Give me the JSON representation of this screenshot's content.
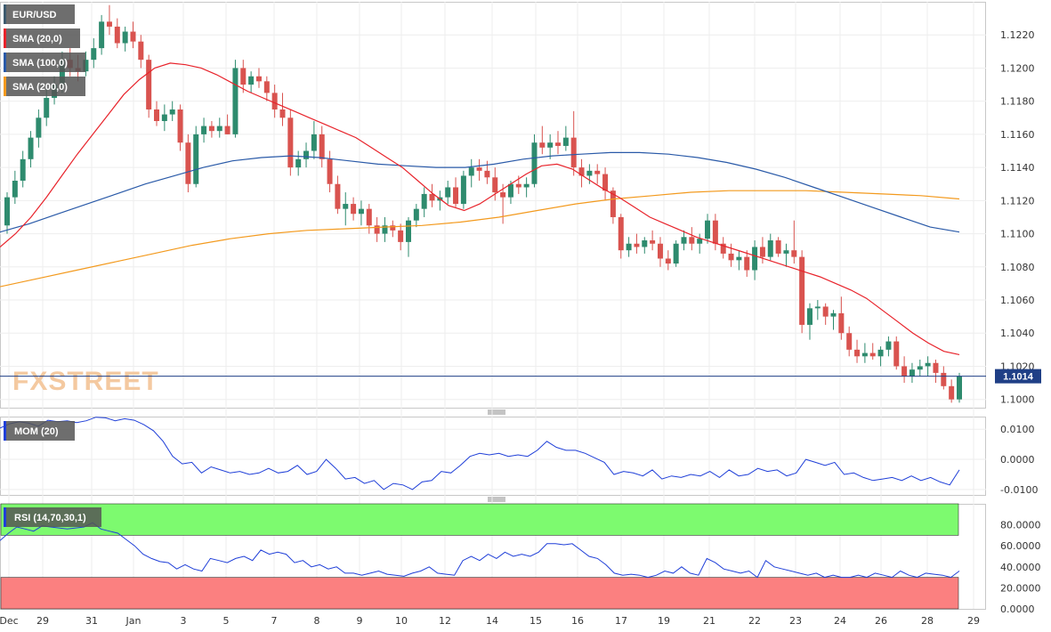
{
  "chart_data": [
    {
      "panel": "price",
      "type": "candlestick",
      "symbol": "EUR/USD",
      "watermark": "FXSTREET",
      "ylim": [
        1.0995,
        1.124
      ],
      "yticks": [
        "1.1000",
        "1.1020",
        "1.1040",
        "1.1060",
        "1.1080",
        "1.1100",
        "1.1120",
        "1.1140",
        "1.1160",
        "1.1180",
        "1.1200",
        "1.1220"
      ],
      "xtick_labels": [
        "Dec",
        "29",
        "31",
        "Jan",
        "3",
        "5",
        "7",
        "8",
        "9",
        "10",
        "12",
        "14",
        "15",
        "16",
        "17",
        "19",
        "21",
        "22",
        "23",
        "24",
        "26",
        "28",
        "29"
      ],
      "last_price": "1.1014",
      "legend": [
        "EUR/USD",
        "SMA (20,0)",
        "SMA (100,0)",
        "SMA (200,0)"
      ],
      "colors": {
        "up": "#2e8b6e",
        "down": "#d9534f",
        "sma20": "#e8232b",
        "sma100": "#2a5aa8",
        "sma200": "#f39a1e",
        "price_line": "#1f3f86"
      },
      "candles": [
        [
          1.1105,
          1.1125,
          1.11,
          1.1122
        ],
        [
          1.1122,
          1.1138,
          1.1118,
          1.1132
        ],
        [
          1.1132,
          1.115,
          1.1128,
          1.1145
        ],
        [
          1.1145,
          1.1162,
          1.114,
          1.1158
        ],
        [
          1.1158,
          1.1175,
          1.1152,
          1.117
        ],
        [
          1.117,
          1.1188,
          1.1165,
          1.1182
        ],
        [
          1.1182,
          1.1195,
          1.1178,
          1.119
        ],
        [
          1.119,
          1.121,
          1.1185,
          1.1205
        ],
        [
          1.1205,
          1.1212,
          1.1195,
          1.12
        ],
        [
          1.12,
          1.1208,
          1.1192,
          1.1198
        ],
        [
          1.1198,
          1.121,
          1.1195,
          1.1205
        ],
        [
          1.1205,
          1.1218,
          1.12,
          1.1212
        ],
        [
          1.1212,
          1.1232,
          1.1208,
          1.1228
        ],
        [
          1.1228,
          1.1238,
          1.122,
          1.1225
        ],
        [
          1.1225,
          1.123,
          1.1212,
          1.1215
        ],
        [
          1.1215,
          1.1225,
          1.121,
          1.1222
        ],
        [
          1.1222,
          1.1228,
          1.1212,
          1.1216
        ],
        [
          1.1216,
          1.122,
          1.12,
          1.1205
        ],
        [
          1.1205,
          1.1208,
          1.117,
          1.1175
        ],
        [
          1.1175,
          1.118,
          1.1165,
          1.1168
        ],
        [
          1.1168,
          1.1178,
          1.1162,
          1.1172
        ],
        [
          1.1172,
          1.118,
          1.1168,
          1.1175
        ],
        [
          1.1175,
          1.1178,
          1.115,
          1.1155
        ],
        [
          1.1155,
          1.116,
          1.1125,
          1.113
        ],
        [
          1.113,
          1.1165,
          1.1128,
          1.116
        ],
        [
          1.116,
          1.117,
          1.1155,
          1.1165
        ],
        [
          1.1165,
          1.1168,
          1.1158,
          1.1162
        ],
        [
          1.1162,
          1.117,
          1.1158,
          1.1165
        ],
        [
          1.1165,
          1.1172,
          1.116,
          1.116
        ],
        [
          1.116,
          1.1205,
          1.1158,
          1.12
        ],
        [
          1.12,
          1.1205,
          1.1185,
          1.119
        ],
        [
          1.119,
          1.1198,
          1.1185,
          1.1195
        ],
        [
          1.1195,
          1.12,
          1.1188,
          1.1192
        ],
        [
          1.1192,
          1.1195,
          1.118,
          1.1185
        ],
        [
          1.1185,
          1.119,
          1.117,
          1.1175
        ],
        [
          1.1175,
          1.1185,
          1.1165,
          1.117
        ],
        [
          1.117,
          1.1175,
          1.1135,
          1.114
        ],
        [
          1.114,
          1.115,
          1.1135,
          1.1145
        ],
        [
          1.1145,
          1.1155,
          1.114,
          1.115
        ],
        [
          1.115,
          1.1168,
          1.1145,
          1.116
        ],
        [
          1.116,
          1.1165,
          1.114,
          1.1145
        ],
        [
          1.1145,
          1.115,
          1.1125,
          1.113
        ],
        [
          1.113,
          1.1135,
          1.1112,
          1.1115
        ],
        [
          1.1115,
          1.1125,
          1.1105,
          1.1118
        ],
        [
          1.1118,
          1.1122,
          1.1108,
          1.1112
        ],
        [
          1.1112,
          1.112,
          1.1105,
          1.1115
        ],
        [
          1.1115,
          1.1118,
          1.11,
          1.1105
        ],
        [
          1.1105,
          1.111,
          1.1095,
          1.11
        ],
        [
          1.11,
          1.111,
          1.1095,
          1.1105
        ],
        [
          1.1105,
          1.1108,
          1.1098,
          1.1102
        ],
        [
          1.1102,
          1.1106,
          1.109,
          1.1095
        ],
        [
          1.1095,
          1.111,
          1.1086,
          1.1108
        ],
        [
          1.1108,
          1.1118,
          1.1104,
          1.1115
        ],
        [
          1.1115,
          1.1128,
          1.111,
          1.1124
        ],
        [
          1.1124,
          1.113,
          1.1116,
          1.112
        ],
        [
          1.112,
          1.1126,
          1.1114,
          1.1122
        ],
        [
          1.1122,
          1.1132,
          1.1118,
          1.1128
        ],
        [
          1.1128,
          1.1134,
          1.1116,
          1.1118
        ],
        [
          1.1118,
          1.1138,
          1.1115,
          1.1135
        ],
        [
          1.1135,
          1.1145,
          1.1128,
          1.114
        ],
        [
          1.114,
          1.1145,
          1.1132,
          1.1138
        ],
        [
          1.1138,
          1.1144,
          1.113,
          1.1134
        ],
        [
          1.1134,
          1.114,
          1.112,
          1.1125
        ],
        [
          1.1125,
          1.113,
          1.1106,
          1.1122
        ],
        [
          1.1122,
          1.1132,
          1.1118,
          1.113
        ],
        [
          1.113,
          1.1135,
          1.1124,
          1.1128
        ],
        [
          1.1128,
          1.1134,
          1.1122,
          1.113
        ],
        [
          1.113,
          1.116,
          1.1128,
          1.1155
        ],
        [
          1.1155,
          1.1165,
          1.1148,
          1.1152
        ],
        [
          1.1152,
          1.116,
          1.1145,
          1.1155
        ],
        [
          1.1155,
          1.1162,
          1.1148,
          1.1153
        ],
        [
          1.1153,
          1.1165,
          1.115,
          1.1158
        ],
        [
          1.1158,
          1.1174,
          1.1135,
          1.114
        ],
        [
          1.114,
          1.1145,
          1.1128,
          1.1135
        ],
        [
          1.1135,
          1.1142,
          1.113,
          1.1138
        ],
        [
          1.1138,
          1.1142,
          1.113,
          1.1136
        ],
        [
          1.1136,
          1.114,
          1.112,
          1.1126
        ],
        [
          1.1126,
          1.1128,
          1.1106,
          1.111
        ],
        [
          1.111,
          1.1112,
          1.1085,
          1.109
        ],
        [
          1.109,
          1.1098,
          1.1086,
          1.1094
        ],
        [
          1.1094,
          1.11,
          1.1088,
          1.1092
        ],
        [
          1.1092,
          1.1098,
          1.1088,
          1.1096
        ],
        [
          1.1096,
          1.1102,
          1.109,
          1.1094
        ],
        [
          1.1094,
          1.1098,
          1.108,
          1.1085
        ],
        [
          1.1085,
          1.109,
          1.1078,
          1.1082
        ],
        [
          1.1082,
          1.1096,
          1.108,
          1.1094
        ],
        [
          1.1094,
          1.1102,
          1.109,
          1.1098
        ],
        [
          1.1098,
          1.1104,
          1.109,
          1.1094
        ],
        [
          1.1094,
          1.11,
          1.1088,
          1.1097
        ],
        [
          1.1097,
          1.1112,
          1.1094,
          1.1108
        ],
        [
          1.1108,
          1.1112,
          1.109,
          1.1094
        ],
        [
          1.1094,
          1.1098,
          1.1085,
          1.1088
        ],
        [
          1.1088,
          1.1094,
          1.108,
          1.1084
        ],
        [
          1.1084,
          1.109,
          1.1078,
          1.1086
        ],
        [
          1.1086,
          1.109,
          1.1074,
          1.1078
        ],
        [
          1.1078,
          1.1096,
          1.1072,
          1.1092
        ],
        [
          1.1092,
          1.1098,
          1.1082,
          1.1086
        ],
        [
          1.1086,
          1.11,
          1.1084,
          1.1096
        ],
        [
          1.1096,
          1.1098,
          1.1086,
          1.1088
        ],
        [
          1.1088,
          1.1094,
          1.108,
          1.109
        ],
        [
          1.109,
          1.1108,
          1.1082,
          1.1086
        ],
        [
          1.1086,
          1.109,
          1.104,
          1.1045
        ],
        [
          1.1045,
          1.1058,
          1.1036,
          1.1055
        ],
        [
          1.1055,
          1.106,
          1.1048,
          1.1056
        ],
        [
          1.1056,
          1.1058,
          1.1045,
          1.105
        ],
        [
          1.105,
          1.1054,
          1.1042,
          1.1052
        ],
        [
          1.1052,
          1.1062,
          1.1036,
          1.104
        ],
        [
          1.104,
          1.1044,
          1.1026,
          1.103
        ],
        [
          1.103,
          1.1036,
          1.1022,
          1.1026
        ],
        [
          1.1026,
          1.1034,
          1.1022,
          1.1028
        ],
        [
          1.1028,
          1.1034,
          1.1024,
          1.1026
        ],
        [
          1.1026,
          1.1032,
          1.102,
          1.103
        ],
        [
          1.103,
          1.1038,
          1.1026,
          1.1035
        ],
        [
          1.1035,
          1.1038,
          1.1018,
          1.102
        ],
        [
          1.102,
          1.1026,
          1.101,
          1.1014
        ],
        [
          1.1014,
          1.1022,
          1.101,
          1.1018
        ],
        [
          1.1018,
          1.1024,
          1.1014,
          1.102
        ],
        [
          1.102,
          1.1026,
          1.1014,
          1.1022
        ],
        [
          1.1022,
          1.1024,
          1.101,
          1.1016
        ],
        [
          1.1016,
          1.102,
          1.1006,
          1.1008
        ],
        [
          1.1008,
          1.1012,
          1.0998,
          1.1
        ],
        [
          1.1,
          1.1016,
          1.0998,
          1.1014
        ]
      ],
      "sma20": [
        1.1092,
        1.11,
        1.111,
        1.1122,
        1.1135,
        1.1148,
        1.116,
        1.1172,
        1.1184,
        1.1193,
        1.12,
        1.1203,
        1.1202,
        1.12,
        1.1196,
        1.1191,
        1.1186,
        1.1182,
        1.1178,
        1.1174,
        1.117,
        1.1166,
        1.1162,
        1.1158,
        1.1152,
        1.1146,
        1.114,
        1.1132,
        1.1124,
        1.1117,
        1.1114,
        1.1118,
        1.1124,
        1.113,
        1.1136,
        1.1141,
        1.1142,
        1.1139,
        1.1133,
        1.1127,
        1.1122,
        1.1116,
        1.111,
        1.1106,
        1.1102,
        1.1098,
        1.1095,
        1.1092,
        1.1089,
        1.1086,
        1.1083,
        1.108,
        1.1077,
        1.1074,
        1.107,
        1.1066,
        1.1061,
        1.1054,
        1.1047,
        1.104,
        1.1034,
        1.1029,
        1.1027
      ],
      "sma100": [
        1.1101,
        1.1106,
        1.1112,
        1.1118,
        1.1124,
        1.113,
        1.1135,
        1.114,
        1.1144,
        1.1146,
        1.1147,
        1.1146,
        1.1144,
        1.1142,
        1.1141,
        1.114,
        1.114,
        1.1142,
        1.1145,
        1.1147,
        1.1148,
        1.1149,
        1.1149,
        1.1148,
        1.1146,
        1.1143,
        1.1139,
        1.1134,
        1.1128,
        1.1122,
        1.1116,
        1.111,
        1.1104,
        1.1101
      ],
      "sma200": [
        1.1068,
        1.1073,
        1.1078,
        1.1083,
        1.1088,
        1.1093,
        1.1097,
        1.11,
        1.1102,
        1.1103,
        1.1104,
        1.1105,
        1.1107,
        1.111,
        1.1114,
        1.1118,
        1.1121,
        1.1123,
        1.1125,
        1.1126,
        1.1126,
        1.1126,
        1.1125,
        1.1124,
        1.1123,
        1.1121
      ]
    },
    {
      "panel": "momentum",
      "type": "line",
      "legend": "MOM (20)",
      "ylim": [
        -0.0118,
        0.0142
      ],
      "yticks": [
        "0.0100",
        "0.0000",
        "-0.0100"
      ],
      "color": "#1f3fd8",
      "values": [
        0.0104,
        0.0118,
        0.0125,
        0.012,
        0.011,
        0.013,
        0.0125,
        0.0128,
        0.0122,
        0.0128,
        0.014,
        0.0138,
        0.0128,
        0.0135,
        0.013,
        0.0115,
        0.0095,
        0.006,
        0.001,
        -0.0015,
        -0.001,
        -0.0045,
        -0.0025,
        -0.0035,
        -0.0045,
        -0.004,
        -0.005,
        -0.0045,
        -0.003,
        -0.0045,
        -0.004,
        -0.002,
        -0.005,
        -0.004,
        0.0,
        -0.003,
        -0.0065,
        -0.006,
        -0.008,
        -0.007,
        -0.01,
        -0.008,
        -0.0085,
        -0.01,
        -0.0075,
        -0.007,
        -0.004,
        -0.0045,
        -0.002,
        0.001,
        0.002,
        0.0015,
        0.002,
        0.001,
        0.0015,
        0.001,
        0.003,
        0.006,
        0.004,
        0.003,
        0.003,
        0.002,
        0.0005,
        -0.001,
        -0.005,
        -0.004,
        -0.0045,
        -0.0055,
        -0.0035,
        -0.0065,
        -0.0055,
        -0.006,
        -0.005,
        -0.0055,
        -0.004,
        -0.006,
        -0.0035,
        -0.0055,
        -0.005,
        -0.003,
        -0.004,
        -0.0035,
        -0.0055,
        -0.0045,
        0.0,
        -0.001,
        -0.002,
        -0.001,
        -0.005,
        -0.0045,
        -0.006,
        -0.007,
        -0.0065,
        -0.006,
        -0.007,
        -0.0055,
        -0.007,
        -0.006,
        -0.0075,
        -0.0085,
        -0.0035
      ]
    },
    {
      "panel": "rsi",
      "type": "line",
      "legend": "RSI (14,70,30,1)",
      "ylim": [
        0,
        100
      ],
      "yticks": [
        "80.0000",
        "60.0000",
        "40.0000",
        "20.0000",
        "0.0000"
      ],
      "bands": {
        "overbought": [
          70,
          100
        ],
        "oversold": [
          0,
          30
        ],
        "overbought_color": "#7dfa6f",
        "oversold_color": "#fb8080"
      },
      "color": "#1f3fd8",
      "values": [
        65,
        72,
        78,
        76,
        74,
        79,
        78,
        77,
        76,
        77,
        78,
        82,
        76,
        74,
        72,
        66,
        60,
        52,
        48,
        45,
        44,
        38,
        42,
        38,
        36,
        48,
        46,
        44,
        48,
        50,
        46,
        56,
        52,
        54,
        52,
        44,
        46,
        40,
        42,
        38,
        40,
        34,
        34,
        32,
        34,
        36,
        33,
        32,
        31,
        34,
        36,
        40,
        34,
        33,
        32,
        46,
        50,
        46,
        52,
        48,
        54,
        50,
        52,
        50,
        54,
        62,
        62,
        61,
        62,
        56,
        50,
        48,
        42,
        34,
        32,
        33,
        32,
        30,
        32,
        36,
        34,
        40,
        34,
        32,
        48,
        44,
        38,
        36,
        34,
        36,
        30,
        46,
        40,
        38,
        36,
        34,
        32,
        34,
        30,
        32,
        30,
        30,
        32,
        30,
        34,
        32,
        30,
        36,
        32,
        30,
        34,
        33,
        32,
        30,
        36
      ]
    }
  ]
}
